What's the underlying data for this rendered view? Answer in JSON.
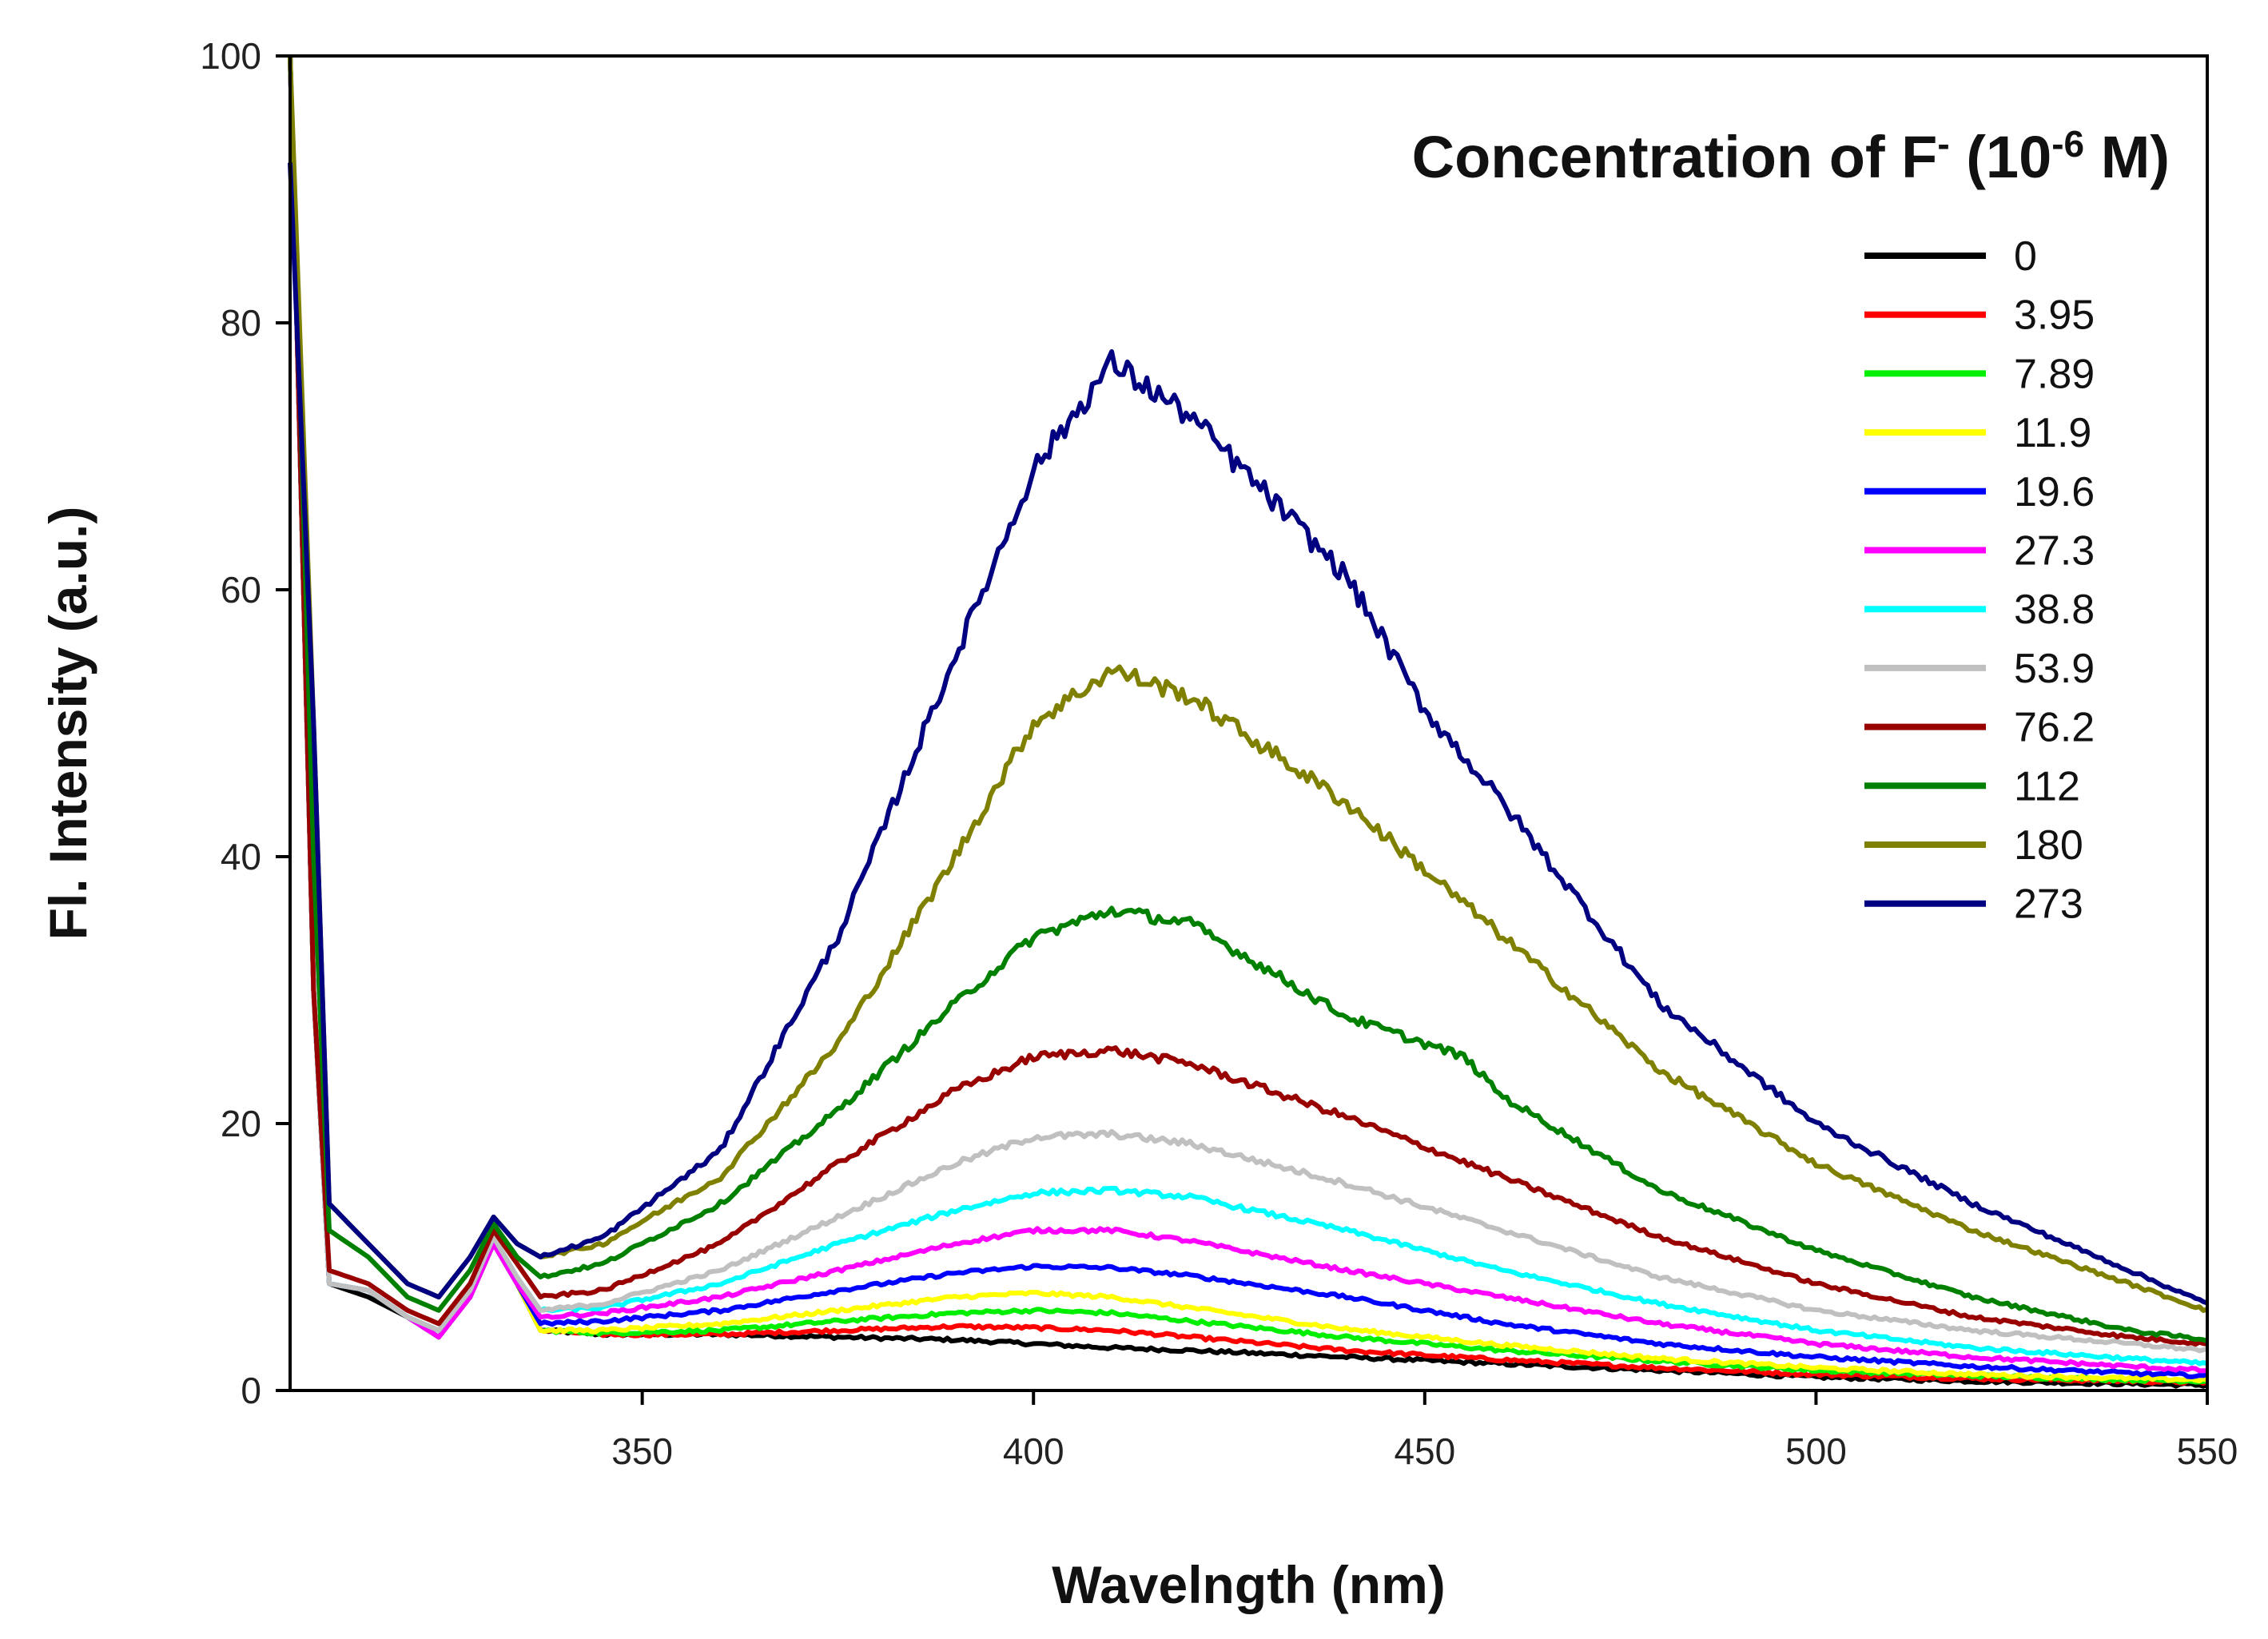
{
  "chart_data": {
    "type": "line",
    "title": "",
    "xlabel": "Wavelngth (nm)",
    "ylabel": "Fl. Intensity (a.u.)",
    "xlim": [
      305,
      550
    ],
    "ylim": [
      0,
      100
    ],
    "xticks": [
      350,
      400,
      450,
      500,
      550
    ],
    "yticks": [
      0,
      20,
      40,
      60,
      80,
      100
    ],
    "grid": false,
    "legend": {
      "position": "top-right",
      "title_main": "Concentration  of F",
      "title_sup1": "-",
      "title_mid": " (10",
      "title_sup2": "-6",
      "title_end": " M)"
    },
    "series": [
      {
        "name": "0",
        "color": "#000000",
        "points": [
          [
            305,
            100
          ],
          [
            308,
            30
          ],
          [
            310,
            8
          ],
          [
            315,
            7
          ],
          [
            320,
            5.5
          ],
          [
            324,
            4.5
          ],
          [
            328,
            7
          ],
          [
            331,
            11
          ],
          [
            334,
            8
          ],
          [
            337,
            4.5
          ],
          [
            345,
            4.2
          ],
          [
            360,
            4.2
          ],
          [
            375,
            4
          ],
          [
            390,
            3.8
          ],
          [
            400,
            3.5
          ],
          [
            410,
            3.2
          ],
          [
            420,
            3
          ],
          [
            440,
            2.5
          ],
          [
            460,
            2
          ],
          [
            480,
            1.5
          ],
          [
            500,
            1
          ],
          [
            520,
            0.7
          ],
          [
            540,
            0.5
          ],
          [
            550,
            0.4
          ]
        ]
      },
      {
        "name": "3.95",
        "color": "#ff0000",
        "points": [
          [
            305,
            100
          ],
          [
            308,
            30
          ],
          [
            310,
            8
          ],
          [
            315,
            7.5
          ],
          [
            320,
            5.5
          ],
          [
            324,
            4
          ],
          [
            328,
            7
          ],
          [
            331,
            11
          ],
          [
            334,
            8
          ],
          [
            337,
            4.5
          ],
          [
            345,
            4.2
          ],
          [
            360,
            4.2
          ],
          [
            375,
            4.5
          ],
          [
            390,
            4.8
          ],
          [
            400,
            4.7
          ],
          [
            410,
            4.5
          ],
          [
            420,
            4
          ],
          [
            440,
            3
          ],
          [
            460,
            2.3
          ],
          [
            480,
            1.7
          ],
          [
            500,
            1.2
          ],
          [
            520,
            0.9
          ],
          [
            540,
            0.7
          ],
          [
            550,
            0.6
          ]
        ]
      },
      {
        "name": "7.89",
        "color": "#00ee00",
        "points": [
          [
            305,
            100
          ],
          [
            308,
            30
          ],
          [
            310,
            8
          ],
          [
            315,
            7.5
          ],
          [
            320,
            5.5
          ],
          [
            324,
            4
          ],
          [
            328,
            7
          ],
          [
            331,
            11
          ],
          [
            334,
            8
          ],
          [
            337,
            4.5
          ],
          [
            345,
            4.3
          ],
          [
            360,
            4.5
          ],
          [
            375,
            5.2
          ],
          [
            390,
            5.8
          ],
          [
            400,
            6
          ],
          [
            410,
            5.8
          ],
          [
            420,
            5.2
          ],
          [
            440,
            4
          ],
          [
            460,
            3
          ],
          [
            480,
            2.2
          ],
          [
            500,
            1.5
          ],
          [
            520,
            1.1
          ],
          [
            540,
            0.8
          ],
          [
            550,
            0.7
          ]
        ]
      },
      {
        "name": "11.9",
        "color": "#ffff00",
        "points": [
          [
            305,
            100
          ],
          [
            308,
            30
          ],
          [
            310,
            8
          ],
          [
            315,
            7.5
          ],
          [
            320,
            5.5
          ],
          [
            324,
            4
          ],
          [
            328,
            7
          ],
          [
            331,
            11
          ],
          [
            334,
            8
          ],
          [
            337,
            4.5
          ],
          [
            345,
            4.5
          ],
          [
            360,
            5
          ],
          [
            375,
            6
          ],
          [
            390,
            7
          ],
          [
            400,
            7.3
          ],
          [
            410,
            7
          ],
          [
            420,
            6.2
          ],
          [
            440,
            4.6
          ],
          [
            460,
            3.4
          ],
          [
            480,
            2.4
          ],
          [
            500,
            1.7
          ],
          [
            520,
            1.2
          ],
          [
            540,
            0.9
          ],
          [
            550,
            0.8
          ]
        ]
      },
      {
        "name": "19.6",
        "color": "#0000ff",
        "points": [
          [
            305,
            100
          ],
          [
            308,
            30
          ],
          [
            310,
            8
          ],
          [
            315,
            7.5
          ],
          [
            320,
            5.5
          ],
          [
            324,
            4
          ],
          [
            328,
            7
          ],
          [
            331,
            11
          ],
          [
            334,
            8
          ],
          [
            337,
            5
          ],
          [
            345,
            5.2
          ],
          [
            360,
            6
          ],
          [
            375,
            7.5
          ],
          [
            390,
            8.8
          ],
          [
            400,
            9.3
          ],
          [
            410,
            9.2
          ],
          [
            420,
            8.6
          ],
          [
            440,
            7
          ],
          [
            460,
            5
          ],
          [
            480,
            3.5
          ],
          [
            500,
            2.5
          ],
          [
            520,
            1.8
          ],
          [
            540,
            1.3
          ],
          [
            550,
            1.1
          ]
        ]
      },
      {
        "name": "27.3",
        "color": "#ff00ff",
        "points": [
          [
            305,
            100
          ],
          [
            308,
            30
          ],
          [
            310,
            8
          ],
          [
            315,
            7.5
          ],
          [
            320,
            5.5
          ],
          [
            324,
            4
          ],
          [
            328,
            7
          ],
          [
            331,
            11
          ],
          [
            334,
            8
          ],
          [
            337,
            5.5
          ],
          [
            345,
            5.8
          ],
          [
            360,
            7
          ],
          [
            375,
            9
          ],
          [
            390,
            11
          ],
          [
            400,
            12
          ],
          [
            410,
            12
          ],
          [
            420,
            11.2
          ],
          [
            440,
            9
          ],
          [
            460,
            7
          ],
          [
            480,
            5
          ],
          [
            500,
            3.5
          ],
          [
            520,
            2.5
          ],
          [
            540,
            1.8
          ],
          [
            550,
            1.5
          ]
        ]
      },
      {
        "name": "38.8",
        "color": "#00ffff",
        "points": [
          [
            305,
            100
          ],
          [
            308,
            30
          ],
          [
            310,
            8
          ],
          [
            315,
            7.5
          ],
          [
            320,
            5.5
          ],
          [
            324,
            4.5
          ],
          [
            328,
            7.5
          ],
          [
            331,
            11.5
          ],
          [
            334,
            8.5
          ],
          [
            337,
            6
          ],
          [
            345,
            6.2
          ],
          [
            360,
            8
          ],
          [
            375,
            11
          ],
          [
            390,
            13.5
          ],
          [
            400,
            14.8
          ],
          [
            410,
            15
          ],
          [
            420,
            14.5
          ],
          [
            440,
            12
          ],
          [
            460,
            9
          ],
          [
            480,
            6.5
          ],
          [
            500,
            4.5
          ],
          [
            520,
            3.2
          ],
          [
            540,
            2.4
          ],
          [
            550,
            2
          ]
        ]
      },
      {
        "name": "53.9",
        "color": "#c0c0c0",
        "points": [
          [
            305,
            100
          ],
          [
            308,
            30
          ],
          [
            310,
            8
          ],
          [
            315,
            7.5
          ],
          [
            320,
            5.5
          ],
          [
            324,
            4.5
          ],
          [
            328,
            7.5
          ],
          [
            331,
            11.5
          ],
          [
            334,
            8.5
          ],
          [
            337,
            6
          ],
          [
            345,
            6.5
          ],
          [
            360,
            9
          ],
          [
            375,
            13
          ],
          [
            390,
            17
          ],
          [
            400,
            19
          ],
          [
            410,
            19.2
          ],
          [
            420,
            18.5
          ],
          [
            440,
            15.5
          ],
          [
            460,
            12
          ],
          [
            480,
            8.5
          ],
          [
            500,
            6
          ],
          [
            520,
            4.5
          ],
          [
            540,
            3.5
          ],
          [
            550,
            3
          ]
        ]
      },
      {
        "name": "76.2",
        "color": "#990000",
        "points": [
          [
            305,
            100
          ],
          [
            308,
            30
          ],
          [
            310,
            9
          ],
          [
            315,
            8
          ],
          [
            320,
            6
          ],
          [
            324,
            5
          ],
          [
            328,
            8
          ],
          [
            331,
            12
          ],
          [
            334,
            9.5
          ],
          [
            337,
            7
          ],
          [
            345,
            7.5
          ],
          [
            360,
            11
          ],
          [
            375,
            17
          ],
          [
            390,
            22.5
          ],
          [
            400,
            25
          ],
          [
            410,
            25.5
          ],
          [
            420,
            24.5
          ],
          [
            440,
            20.5
          ],
          [
            460,
            16
          ],
          [
            480,
            11.5
          ],
          [
            500,
            8
          ],
          [
            520,
            5.5
          ],
          [
            540,
            4
          ],
          [
            550,
            3.5
          ]
        ]
      },
      {
        "name": "112",
        "color": "#008000",
        "points": [
          [
            305,
            100
          ],
          [
            308,
            40
          ],
          [
            310,
            12
          ],
          [
            315,
            10
          ],
          [
            320,
            7
          ],
          [
            324,
            6
          ],
          [
            328,
            9
          ],
          [
            331,
            12.5
          ],
          [
            334,
            10
          ],
          [
            337,
            8.5
          ],
          [
            345,
            9.5
          ],
          [
            360,
            14
          ],
          [
            375,
            21
          ],
          [
            390,
            29
          ],
          [
            400,
            34
          ],
          [
            410,
            36
          ],
          [
            420,
            35
          ],
          [
            440,
            28
          ],
          [
            455,
            25
          ],
          [
            460,
            22
          ],
          [
            480,
            15
          ],
          [
            500,
            10.5
          ],
          [
            520,
            7
          ],
          [
            540,
            4.5
          ],
          [
            550,
            3.8
          ]
        ]
      },
      {
        "name": "180",
        "color": "#808000",
        "points": [
          [
            305,
            100
          ],
          [
            308,
            50
          ],
          [
            310,
            14
          ],
          [
            315,
            11
          ],
          [
            320,
            8
          ],
          [
            324,
            7
          ],
          [
            328,
            10
          ],
          [
            331,
            13
          ],
          [
            334,
            11
          ],
          [
            337,
            10
          ],
          [
            345,
            11
          ],
          [
            360,
            16
          ],
          [
            375,
            26
          ],
          [
            390,
            40
          ],
          [
            400,
            50
          ],
          [
            410,
            54
          ],
          [
            420,
            52
          ],
          [
            440,
            44
          ],
          [
            460,
            34
          ],
          [
            480,
            24
          ],
          [
            500,
            17
          ],
          [
            520,
            12
          ],
          [
            540,
            8
          ],
          [
            550,
            6
          ]
        ]
      },
      {
        "name": "273",
        "color": "#000080",
        "points": [
          [
            305,
            92
          ],
          [
            308,
            50
          ],
          [
            310,
            14
          ],
          [
            315,
            11
          ],
          [
            320,
            8
          ],
          [
            324,
            7
          ],
          [
            328,
            10
          ],
          [
            331,
            13
          ],
          [
            334,
            11
          ],
          [
            337,
            10
          ],
          [
            345,
            11.5
          ],
          [
            360,
            18
          ],
          [
            375,
            34
          ],
          [
            390,
            55
          ],
          [
            400,
            69
          ],
          [
            410,
            77
          ],
          [
            420,
            73
          ],
          [
            430,
            67
          ],
          [
            440,
            61
          ],
          [
            450,
            51
          ],
          [
            460,
            44
          ],
          [
            480,
            29
          ],
          [
            500,
            20
          ],
          [
            520,
            14
          ],
          [
            540,
            9
          ],
          [
            550,
            6.5
          ]
        ]
      }
    ]
  }
}
